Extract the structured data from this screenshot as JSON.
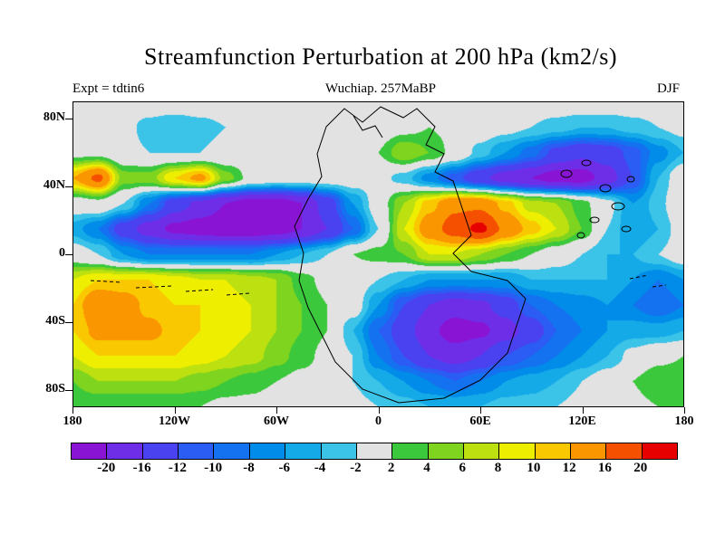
{
  "title": "Streamfunction Perturbation at 200 hPa (km2/s)",
  "header": {
    "experiment": "Expt = tdtin6",
    "case": "Wuchiap. 257MaBP",
    "season": "DJF"
  },
  "colorbar": {
    "labels": [
      "-20",
      "-16",
      "-12",
      "-10",
      "-8",
      "-6",
      "-4",
      "-2",
      "2",
      "4",
      "6",
      "8",
      "10",
      "12",
      "16",
      "20"
    ]
  },
  "chart_data": {
    "type": "heatmap",
    "title": "Streamfunction Perturbation at 200 hPa (km2/s)",
    "units": "km2/s",
    "season": "DJF",
    "x_axis": {
      "range": [
        -180,
        180
      ],
      "ticks": [
        {
          "label": "180",
          "lon": -180
        },
        {
          "label": "120W",
          "lon": -120
        },
        {
          "label": "60W",
          "lon": -60
        },
        {
          "label": "0",
          "lon": 0
        },
        {
          "label": "60E",
          "lon": 60
        },
        {
          "label": "120E",
          "lon": 120
        },
        {
          "label": "180",
          "lon": 180
        }
      ]
    },
    "y_axis": {
      "range": [
        -90,
        90
      ],
      "ticks": [
        {
          "label": "80N",
          "lat": 80
        },
        {
          "label": "40N",
          "lat": 40
        },
        {
          "label": "0",
          "lat": 0
        },
        {
          "label": "40S",
          "lat": -40
        },
        {
          "label": "80S",
          "lat": -80
        }
      ]
    },
    "contour_levels": [
      -20,
      -16,
      -12,
      -10,
      -8,
      -6,
      -4,
      -2,
      2,
      4,
      6,
      8,
      10,
      12,
      16,
      20
    ],
    "fill_colors": [
      "#8a14d4",
      "#6e2ee8",
      "#4a42f0",
      "#2b5cf4",
      "#1472f0",
      "#008ce8",
      "#14aae8",
      "#3cc3e8",
      "#e2e2e2",
      "#3cc83c",
      "#7ed41e",
      "#bce010",
      "#eeee00",
      "#fac800",
      "#fa9600",
      "#f55000",
      "#e60000"
    ],
    "grid": {
      "lons": [
        -180,
        -165,
        -150,
        -135,
        -120,
        -105,
        -90,
        -75,
        -60,
        -45,
        -30,
        -15,
        0,
        15,
        30,
        45,
        60,
        75,
        90,
        105,
        120,
        135,
        150,
        165,
        180
      ],
      "lats": [
        90,
        75,
        60,
        45,
        30,
        15,
        0,
        -15,
        -30,
        -45,
        -60,
        -75,
        -90
      ],
      "values": [
        [
          0,
          0,
          0,
          0,
          0,
          0,
          0,
          0,
          0,
          0,
          0,
          0,
          0,
          0,
          0,
          0,
          0,
          0,
          0,
          0,
          0,
          0,
          0,
          0,
          0
        ],
        [
          0,
          0,
          -1,
          -3,
          -4,
          -3,
          -2,
          -1,
          0,
          0,
          0,
          0,
          0,
          1,
          2,
          1,
          0,
          -1,
          -2,
          -3,
          -4,
          -4,
          -3,
          -2,
          -1
        ],
        [
          1,
          1,
          -1,
          -2,
          -2,
          -2,
          -1,
          0,
          0,
          0,
          0,
          1,
          2,
          6,
          4,
          1,
          -3,
          -6,
          -9,
          -13,
          -15,
          -14,
          -11,
          -7,
          -4
        ],
        [
          12,
          17,
          5,
          5,
          10,
          13,
          5,
          1,
          0,
          0,
          0,
          0,
          -1,
          -3,
          -7,
          -11,
          -15,
          -18,
          -20,
          -22,
          -22,
          -18,
          -12,
          -4,
          1
        ],
        [
          0,
          1,
          -2,
          -8,
          -14,
          -17,
          -20,
          -22,
          -22,
          -20,
          -14,
          -6,
          0,
          6,
          11,
          15,
          15,
          11,
          7,
          6,
          3,
          -1,
          -6,
          -3,
          2
        ],
        [
          -5,
          -8,
          -14,
          -18,
          -21,
          -22,
          -23,
          -23,
          -22,
          -20,
          -16,
          -10,
          -2,
          8,
          14,
          18,
          21,
          15,
          11,
          8,
          4,
          -2,
          -6,
          -4,
          0
        ],
        [
          0,
          -2,
          -6,
          -8,
          -8,
          -8,
          -8,
          -8,
          -6,
          -4,
          -2,
          2,
          3,
          4,
          8,
          8,
          6,
          4,
          2,
          0,
          -2,
          -4,
          -4,
          -2,
          0
        ],
        [
          8,
          10,
          10,
          10,
          9,
          8,
          8,
          7,
          6,
          3,
          1,
          0,
          -2,
          -4,
          -6,
          -6,
          -6,
          -6,
          -4,
          -4,
          -4,
          -4,
          -6,
          -8,
          -6
        ],
        [
          10,
          16,
          14,
          11,
          10,
          10,
          9,
          8,
          6,
          4,
          2,
          0,
          -6,
          -12,
          -16,
          -18,
          -17,
          -14,
          -10,
          -8,
          -7,
          -6,
          -8,
          -10,
          -8
        ],
        [
          10,
          13,
          13,
          13,
          11,
          10,
          9,
          8,
          6,
          4,
          2,
          -4,
          -10,
          -14,
          -19,
          -22,
          -21,
          -18,
          -14,
          -10,
          -8,
          -6,
          -5,
          -5,
          -4
        ],
        [
          8,
          10,
          10,
          10,
          10,
          9,
          8,
          7,
          5,
          3,
          1,
          -2,
          -8,
          -12,
          -16,
          -18,
          -16,
          -12,
          -10,
          -8,
          -6,
          -4,
          -1,
          1,
          2
        ],
        [
          4,
          6,
          6,
          6,
          6,
          5,
          4,
          3,
          2,
          1,
          0,
          -2,
          -4,
          -6,
          -8,
          -10,
          -8,
          -6,
          -5,
          -4,
          -2,
          0,
          2,
          4,
          4
        ],
        [
          2,
          2,
          2,
          2,
          2,
          2,
          1,
          1,
          0,
          0,
          0,
          -1,
          -2,
          -3,
          -4,
          -4,
          -4,
          -3,
          -3,
          -2,
          -1,
          0,
          1,
          2,
          2
        ]
      ]
    }
  }
}
